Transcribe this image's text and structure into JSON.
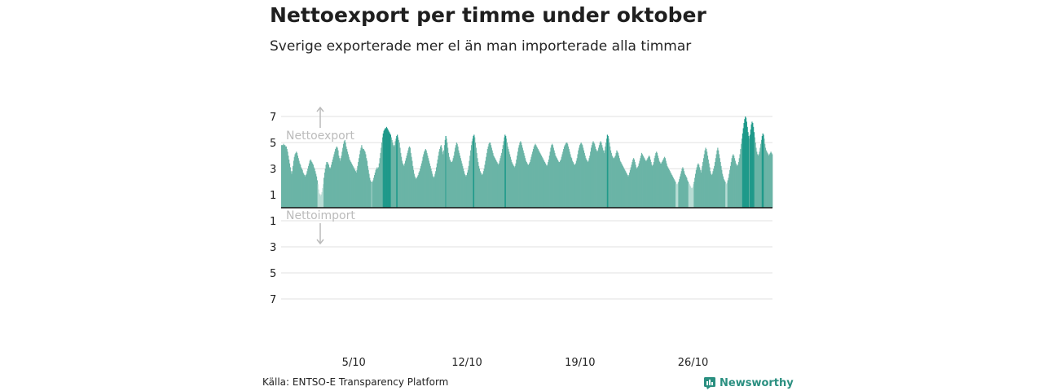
{
  "title": "Nettoexport per timme under oktober",
  "subtitle": "Sverige exporterade mer el än man importerade alla timmar",
  "source": "Källa: ENTSO-E Transparency Platform",
  "brand": {
    "name": "Newsworthy",
    "color": "#2a8f80"
  },
  "colors": {
    "bar": "#6ab4a6",
    "bar_high": "#1f998a",
    "bar_low": "#b7dcd4",
    "grid": "#e2e2e2",
    "zero_line": "#111111",
    "annotation": "#bbbbbb"
  },
  "chart_data": {
    "type": "bar",
    "title": "Nettoexport per timme under oktober",
    "subtitle": "Sverige exporterade mer el än man importerade alla timmar",
    "xlabel": "",
    "ylabel": "",
    "x_range": [
      "1/10",
      "31/10"
    ],
    "xticks": [
      "5/10",
      "12/10",
      "19/10",
      "26/10"
    ],
    "yticks": [
      {
        "value": 7,
        "label": "7"
      },
      {
        "value": 5,
        "label": "5"
      },
      {
        "value": 3,
        "label": "3"
      },
      {
        "value": 1,
        "label": "1"
      },
      {
        "value": -1,
        "label": "1"
      },
      {
        "value": -3,
        "label": "3"
      },
      {
        "value": -5,
        "label": "5"
      },
      {
        "value": -7,
        "label": "7"
      }
    ],
    "ylim": [
      -8,
      8
    ],
    "grid": true,
    "annotations": {
      "export": "Nettoexport",
      "import": "Nettoimport"
    },
    "series": [
      {
        "unit": "per timme",
        "days": [
          {
            "date": "1/10",
            "hourly": [
              4.8,
              4.8,
              4.8,
              4.9,
              4.8,
              4.8,
              4.7,
              4.7,
              4.5,
              4.3,
              4.0,
              3.7,
              3.4,
              3.1,
              2.8,
              2.6,
              2.8,
              3.2,
              3.6,
              3.9,
              4.1,
              4.2,
              4.3,
              4.2
            ]
          },
          {
            "date": "2/10",
            "hourly": [
              4.0,
              3.8,
              3.6,
              3.4,
              3.3,
              3.1,
              3.0,
              2.9,
              2.7,
              2.6,
              2.5,
              2.4,
              2.5,
              2.6,
              2.8,
              3.0,
              3.2,
              3.4,
              3.6,
              3.7,
              3.6,
              3.5,
              3.4,
              3.3
            ]
          },
          {
            "date": "3/10",
            "hourly": [
              3.1,
              3.0,
              2.8,
              2.6,
              2.4,
              2.1,
              1.8,
              1.4,
              1.1,
              1.0,
              0.9,
              1.0,
              1.2,
              1.5,
              1.8,
              2.3,
              2.7,
              3.0,
              3.3,
              3.5,
              3.5,
              3.4,
              3.3,
              3.1
            ]
          },
          {
            "date": "4/10",
            "hourly": [
              3.0,
              3.1,
              3.3,
              3.5,
              3.7,
              3.9,
              4.1,
              4.3,
              4.5,
              4.6,
              4.7,
              4.6,
              4.4,
              4.0,
              3.8,
              3.6,
              3.8,
              4.0,
              4.3,
              4.6,
              4.9,
              5.1,
              5.2,
              5.0
            ]
          },
          {
            "date": "5/10",
            "hourly": [
              4.7,
              4.5,
              4.3,
              4.1,
              3.9,
              3.7,
              3.6,
              3.5,
              3.4,
              3.3,
              3.2,
              3.1,
              3.0,
              2.9,
              2.8,
              2.7,
              2.9,
              3.2,
              3.5,
              3.8,
              4.1,
              4.4,
              4.6,
              4.8
            ]
          },
          {
            "date": "6/10",
            "hourly": [
              4.6,
              4.5,
              4.5,
              4.4,
              4.3,
              4.1,
              3.8,
              3.6,
              3.2,
              2.9,
              2.6,
              2.3,
              2.1,
              2.0,
              1.9,
              2.0,
              2.1,
              2.3,
              2.5,
              2.7,
              2.9,
              3.0,
              3.1,
              3.0
            ]
          },
          {
            "date": "7/10",
            "hourly": [
              3.1,
              3.4,
              3.8,
              4.2,
              4.6,
              5.0,
              5.4,
              5.7,
              5.9,
              6.0,
              6.1,
              6.1,
              6.2,
              6.1,
              6.0,
              5.9,
              5.8,
              5.7,
              5.6,
              5.4,
              5.2,
              5.0,
              4.8,
              4.7
            ]
          },
          {
            "date": "8/10",
            "hourly": [
              4.8,
              5.1,
              5.3,
              5.5,
              5.6,
              5.4,
              5.2,
              5.0,
              4.6,
              4.2,
              3.9,
              3.6,
              3.4,
              3.3,
              3.2,
              3.4,
              3.6,
              3.8,
              4.0,
              4.2,
              4.4,
              4.6,
              4.7,
              4.6
            ]
          },
          {
            "date": "9/10",
            "hourly": [
              4.2,
              3.9,
              3.6,
              3.2,
              2.9,
              2.6,
              2.4,
              2.3,
              2.2,
              2.3,
              2.4,
              2.5,
              2.7,
              2.8,
              3.0,
              3.2,
              3.4,
              3.6,
              3.9,
              4.1,
              4.3,
              4.4,
              4.5,
              4.4
            ]
          },
          {
            "date": "10/10",
            "hourly": [
              4.2,
              4.0,
              3.8,
              3.6,
              3.4,
              3.2,
              3.0,
              2.8,
              2.6,
              2.4,
              2.3,
              2.4,
              2.6,
              2.8,
              3.1,
              3.4,
              3.7,
              4.0,
              4.3,
              4.5,
              4.7,
              4.8,
              4.6,
              4.3
            ]
          },
          {
            "date": "11/10",
            "hourly": [
              4.1,
              4.4,
              4.8,
              5.2,
              5.5,
              5.3,
              5.0,
              4.6,
              4.2,
              3.9,
              3.7,
              3.6,
              3.5,
              3.5,
              3.6,
              3.8,
              4.0,
              4.3,
              4.6,
              4.8,
              5.0,
              4.9,
              4.7,
              4.4
            ]
          },
          {
            "date": "12/10",
            "hourly": [
              4.2,
              4.0,
              3.8,
              3.6,
              3.4,
              3.2,
              3.0,
              2.8,
              2.6,
              2.5,
              2.4,
              2.5,
              2.7,
              2.9,
              3.2,
              3.6,
              4.0,
              4.4,
              4.8,
              5.1,
              5.3,
              5.5,
              5.6,
              5.4
            ]
          },
          {
            "date": "13/10",
            "hourly": [
              5.0,
              4.6,
              4.2,
              3.8,
              3.5,
              3.2,
              3.0,
              2.8,
              2.7,
              2.6,
              2.5,
              2.6,
              2.8,
              3.0,
              3.3,
              3.6,
              3.9,
              4.2,
              4.5,
              4.7,
              4.9,
              5.0,
              5.0,
              4.8
            ]
          },
          {
            "date": "14/10",
            "hourly": [
              4.6,
              4.4,
              4.2,
              4.0,
              3.9,
              3.8,
              3.7,
              3.6,
              3.5,
              3.4,
              3.3,
              3.4,
              3.6,
              3.8,
              4.0,
              4.2,
              4.5,
              4.8,
              5.1,
              5.4,
              5.6,
              5.5,
              5.3,
              5.0
            ]
          },
          {
            "date": "15/10",
            "hourly": [
              4.7,
              4.5,
              4.3,
              4.1,
              3.9,
              3.7,
              3.5,
              3.4,
              3.3,
              3.2,
              3.1,
              3.2,
              3.4,
              3.7,
              4.0,
              4.3,
              4.6,
              4.8,
              5.0,
              5.1,
              5.0,
              4.8,
              4.6,
              4.4
            ]
          },
          {
            "date": "16/10",
            "hourly": [
              4.2,
              4.0,
              3.8,
              3.6,
              3.5,
              3.4,
              3.3,
              3.3,
              3.4,
              3.5,
              3.7,
              3.9,
              4.1,
              4.3,
              4.5,
              4.7,
              4.8,
              4.9,
              4.8,
              4.7,
              4.6,
              4.5,
              4.4,
              4.3
            ]
          },
          {
            "date": "17/10",
            "hourly": [
              4.2,
              4.1,
              4.0,
              3.9,
              3.8,
              3.7,
              3.6,
              3.5,
              3.4,
              3.3,
              3.2,
              3.3,
              3.5,
              3.7,
              4.0,
              4.3,
              4.6,
              4.8,
              4.9,
              4.8,
              4.6,
              4.4,
              4.2,
              4.0
            ]
          },
          {
            "date": "18/10",
            "hourly": [
              3.9,
              3.8,
              3.7,
              3.6,
              3.5,
              3.5,
              3.6,
              3.7,
              3.9,
              4.1,
              4.3,
              4.5,
              4.7,
              4.8,
              4.9,
              5.0,
              5.0,
              4.9,
              4.7,
              4.5,
              4.3,
              4.1,
              3.9,
              3.8
            ]
          },
          {
            "date": "19/10",
            "hourly": [
              3.6,
              3.5,
              3.4,
              3.3,
              3.3,
              3.4,
              3.6,
              3.8,
              4.1,
              4.4,
              4.6,
              4.8,
              4.9,
              5.0,
              4.9,
              4.8,
              4.6,
              4.4,
              4.2,
              4.0,
              3.8,
              3.7,
              3.6,
              3.5
            ]
          },
          {
            "date": "20/10",
            "hourly": [
              3.6,
              3.8,
              4.0,
              4.3,
              4.6,
              4.8,
              5.0,
              5.1,
              5.0,
              4.9,
              4.7,
              4.5,
              4.4,
              4.3,
              4.4,
              4.6,
              4.8,
              5.0,
              5.1,
              5.0,
              4.8,
              4.6,
              4.4,
              4.2
            ]
          },
          {
            "date": "21/10",
            "hourly": [
              4.4,
              4.7,
              5.0,
              5.3,
              5.6,
              5.5,
              5.3,
              5.0,
              4.7,
              4.4,
              4.2,
              4.0,
              3.9,
              3.8,
              3.8,
              3.9,
              4.0,
              4.2,
              4.4,
              4.3,
              4.2,
              4.0,
              3.8,
              3.6
            ]
          },
          {
            "date": "22/10",
            "hourly": [
              3.5,
              3.4,
              3.3,
              3.2,
              3.1,
              3.0,
              2.9,
              2.8,
              2.7,
              2.6,
              2.5,
              2.4,
              2.5,
              2.7,
              2.9,
              3.1,
              3.3,
              3.5,
              3.7,
              3.8,
              3.7,
              3.5,
              3.3,
              3.1
            ]
          },
          {
            "date": "23/10",
            "hourly": [
              3.0,
              3.1,
              3.2,
              3.4,
              3.6,
              3.8,
              4.0,
              4.2,
              4.1,
              4.0,
              3.9,
              3.8,
              3.7,
              3.6,
              3.6,
              3.7,
              3.8,
              3.9,
              4.0,
              3.9,
              3.7,
              3.5,
              3.3,
              3.2
            ]
          },
          {
            "date": "24/10",
            "hourly": [
              3.3,
              3.5,
              3.8,
              4.0,
              4.2,
              4.3,
              4.2,
              4.0,
              3.8,
              3.6,
              3.5,
              3.4,
              3.4,
              3.5,
              3.6,
              3.7,
              3.8,
              3.9,
              3.8,
              3.6,
              3.4,
              3.2,
              3.1,
              3.0
            ]
          },
          {
            "date": "25/10",
            "hourly": [
              2.9,
              2.8,
              2.7,
              2.6,
              2.5,
              2.4,
              2.3,
              2.2,
              2.1,
              2.0,
              1.9,
              1.8,
              1.8,
              1.9,
              2.0,
              2.2,
              2.4,
              2.6,
              2.8,
              3.0,
              3.1,
              3.0,
              2.8,
              2.6
            ]
          },
          {
            "date": "26/10",
            "hourly": [
              2.5,
              2.4,
              2.3,
              2.1,
              2.0,
              1.9,
              1.8,
              1.7,
              1.6,
              1.5,
              1.5,
              1.6,
              1.8,
              2.0,
              2.3,
              2.6,
              2.9,
              3.1,
              3.3,
              3.4,
              3.3,
              3.1,
              2.9,
              2.7
            ]
          },
          {
            "date": "27/10",
            "hourly": [
              2.9,
              3.2,
              3.5,
              3.8,
              4.1,
              4.4,
              4.6,
              4.5,
              4.3,
              4.0,
              3.7,
              3.4,
              3.1,
              2.8,
              2.6,
              2.5,
              2.6,
              2.8,
              3.0,
              3.2,
              3.5,
              3.8,
              4.1,
              4.4
            ]
          },
          {
            "date": "28/10",
            "hourly": [
              4.6,
              4.4,
              4.1,
              3.8,
              3.5,
              3.2,
              2.9,
              2.6,
              2.4,
              2.2,
              2.1,
              2.0,
              1.9,
              1.8,
              1.9,
              2.1,
              2.3,
              2.6,
              2.9,
              3.2,
              3.5,
              3.8,
              4.0,
              4.1
            ]
          },
          {
            "date": "29/10",
            "hourly": [
              4.0,
              3.8,
              3.6,
              3.4,
              3.3,
              3.2,
              3.3,
              3.5,
              3.8,
              4.1,
              4.5,
              4.9,
              5.3,
              5.7,
              6.1,
              6.5,
              6.8,
              7.0,
              6.9,
              6.6,
              6.2,
              5.8,
              5.5,
              5.3
            ]
          },
          {
            "date": "30/10",
            "hourly": [
              5.6,
              6.0,
              6.4,
              6.6,
              6.5,
              6.2,
              5.8,
              5.4,
              5.0,
              4.6,
              4.3,
              4.1,
              4.0,
              4.1,
              4.3,
              4.6,
              4.9,
              5.2,
              5.5,
              5.7,
              5.6,
              5.3,
              4.9,
              4.6
            ]
          },
          {
            "date": "31/10",
            "hourly": [
              4.4,
              4.3,
              4.2,
              4.1,
              4.0,
              4.1,
              4.2,
              4.3,
              4.2,
              4.1
            ]
          }
        ]
      }
    ]
  }
}
